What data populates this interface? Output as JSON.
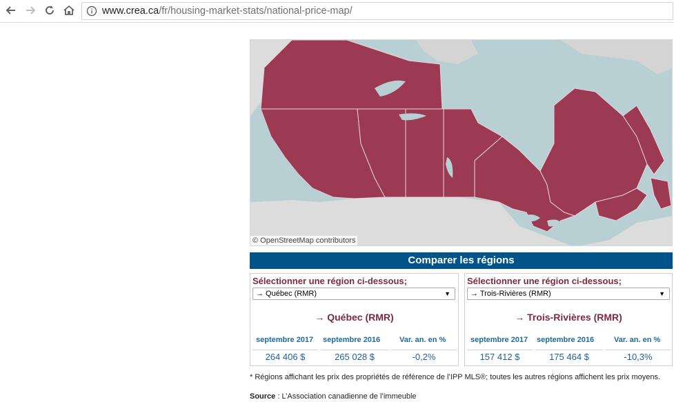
{
  "browser": {
    "url_domain": "www.crea.ca",
    "url_path": "/fr/housing-market-stats/national-price-map/",
    "icons": [
      "back-icon",
      "forward-icon",
      "reload-icon",
      "home-icon",
      "info-icon"
    ]
  },
  "map": {
    "attribution": "© OpenStreetMap contributors",
    "colors": {
      "water": "#b8cfd4",
      "land": "#dcdcdc",
      "region": "#9b3a52"
    }
  },
  "compare": {
    "title": "Comparer les régions"
  },
  "left": {
    "prompt": "Sélectionner une région ci-dessous;",
    "selected": "→ Québec (RMR)",
    "region_title": "→ Québec (RMR)",
    "headers": [
      "septembre 2017",
      "septembre 2016",
      "Var. an. en %"
    ],
    "values": [
      "264 406 $",
      "265 028 $",
      "-0,2%"
    ]
  },
  "right": {
    "prompt": "Sélectionner une région ci-dessous;",
    "selected": "→ Trois-Rivières (RMR)",
    "region_title": "→ Trois-Rivières (RMR)",
    "headers": [
      "septembre 2017",
      "septembre 2016",
      "Var. an. en %"
    ],
    "values": [
      "157 412 $",
      "175 464 $",
      "-10,3%"
    ]
  },
  "footer": {
    "note": "* Régions affichant les prix des propriétés de référence de l’IPP MLS®; toutes les autres régions affichent les prix moyens.",
    "source_label": "Source",
    "source_text": " : L’Association canadienne de l’immeuble"
  }
}
